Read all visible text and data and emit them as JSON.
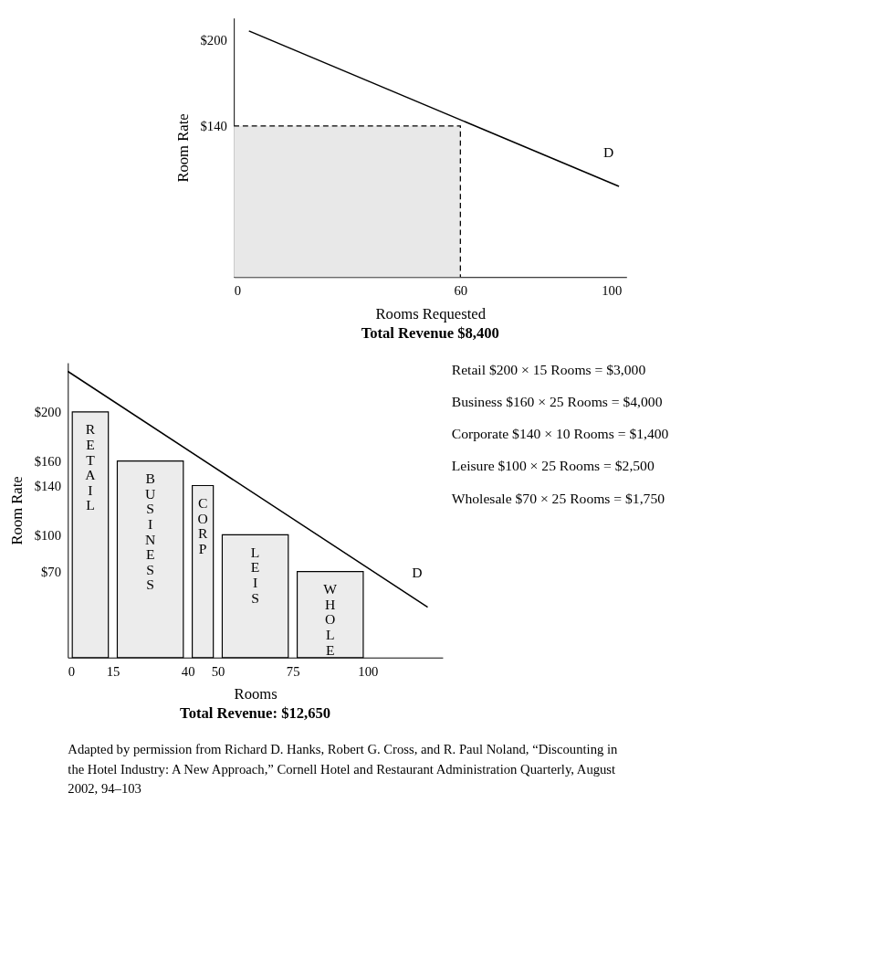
{
  "chart_data": [
    {
      "type": "line",
      "title": "Total Revenue $8,400",
      "xlabel": "Rooms Requested",
      "ylabel": "Room Rate",
      "xlim": [
        0,
        104
      ],
      "ylim": [
        35,
        215
      ],
      "xticks": [
        0,
        60,
        100
      ],
      "yticks": [
        {
          "value": 140,
          "label": "$140"
        },
        {
          "value": 200,
          "label": "$200"
        }
      ],
      "grid": false,
      "series": [
        {
          "type": "area",
          "x": [
            0,
            60,
            60
          ],
          "values": [
            140,
            140,
            35
          ],
          "color": "#e8e8e8",
          "line_style": "dashed"
        },
        {
          "x": [
            4,
            102
          ],
          "values": [
            206,
            98
          ],
          "color": "#000000",
          "line_style": "solid"
        }
      ],
      "annotations": [
        "D"
      ]
    },
    {
      "type": "bar",
      "title": "Total Revenue: $12,650",
      "xlabel": "Rooms",
      "ylabel": "Room Rate",
      "xlim": [
        0,
        125
      ],
      "ylim": [
        0,
        240
      ],
      "xticks": [
        0,
        15,
        40,
        50,
        75,
        100
      ],
      "yticks": [
        {
          "value": 70,
          "label": "$70"
        },
        {
          "value": 100,
          "label": "$100"
        },
        {
          "value": 140,
          "label": "$140"
        },
        {
          "value": 160,
          "label": "$160"
        },
        {
          "value": 200,
          "label": "$200"
        }
      ],
      "grid": false,
      "series": [
        {
          "x": [
            7.5,
            27.5,
            45,
            62.5,
            87.5
          ],
          "values": [
            200,
            160,
            140,
            100,
            70
          ],
          "color": "#ececec"
        },
        {
          "type": "line",
          "x": [
            0,
            120
          ],
          "values": [
            233,
            41
          ],
          "color": "#000000",
          "line_style": "solid"
        }
      ],
      "annotations": [
        "RETAIL",
        "BUSINESS",
        "CORP",
        "LEIS",
        "WHOLE",
        "D",
        "Retail      $200 × 15 Rooms = $3,000",
        "Business    $160 × 25 Rooms = $4,000",
        "Corporate $140 × 10 Rooms = $1,400",
        "Leisure     $100 × 25 Rooms = $2,500",
        "Wholesale  $70 × 25 Rooms = $1,750",
        "Adapted by permission from Richard D. Hanks, Robert G. Cross, and R. Paul Noland, “Discounting in the Hotel Industry: A New Approach,” Cornell Hotel and Restaurant Administration Quarterly, August 2002, 94–103"
      ]
    }
  ]
}
